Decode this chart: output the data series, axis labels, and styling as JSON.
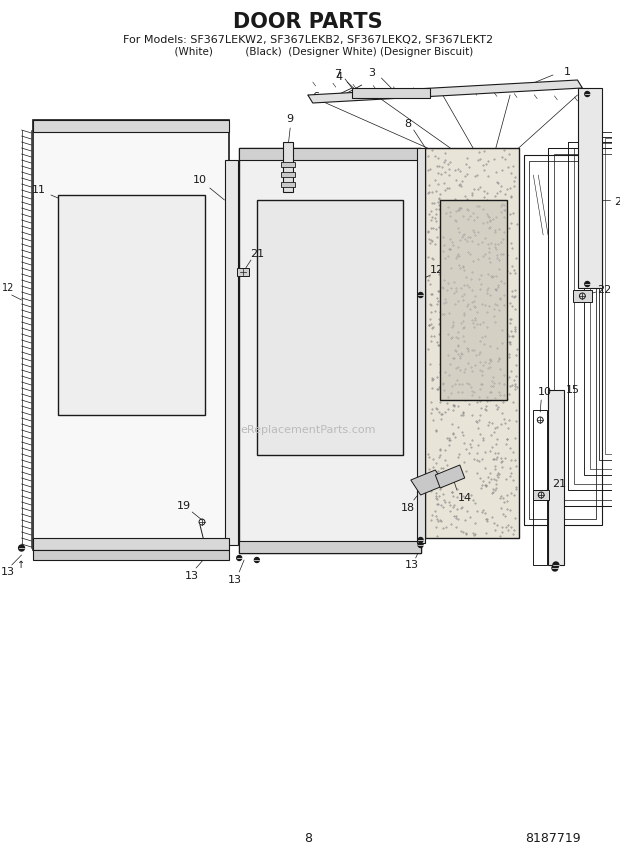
{
  "title": "DOOR PARTS",
  "subtitle_line1": "For Models: SF367LEKW2, SF367LEKB2, SF367LEKQ2, SF367LEKT2",
  "subtitle_line2": "          (White)          (Black)  (Designer White) (Designer Biscuit)",
  "page_number": "8",
  "part_number": "8187719",
  "bg": "#ffffff",
  "lc": "#1a1a1a",
  "watermark": "eReplacementParts.com",
  "wm_color": "#bbbbbb"
}
